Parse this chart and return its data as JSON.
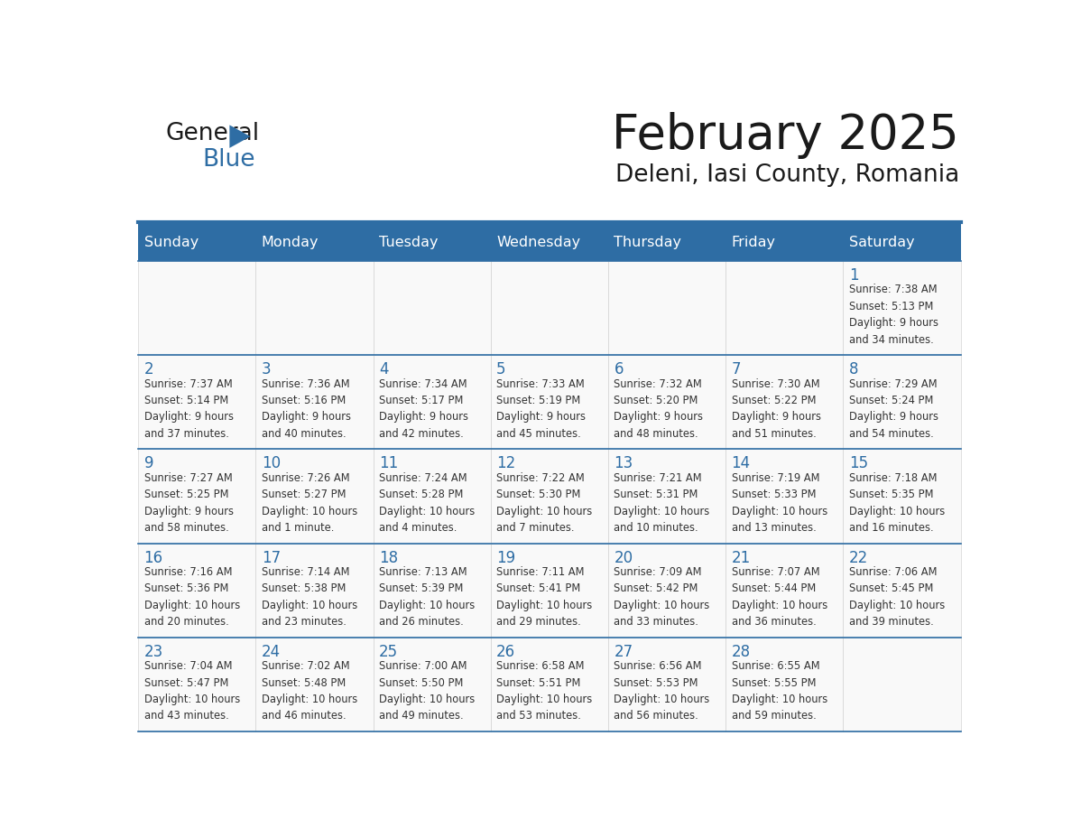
{
  "title": "February 2025",
  "subtitle": "Deleni, Iasi County, Romania",
  "days_of_week": [
    "Sunday",
    "Monday",
    "Tuesday",
    "Wednesday",
    "Thursday",
    "Friday",
    "Saturday"
  ],
  "header_bg": "#2E6DA4",
  "header_text": "#FFFFFF",
  "cell_bg": "#F9F9F9",
  "line_color": "#2E6DA4",
  "text_color": "#333333",
  "day_num_color": "#2E6DA4",
  "calendar_data": [
    [
      {
        "day": null,
        "info": ""
      },
      {
        "day": null,
        "info": ""
      },
      {
        "day": null,
        "info": ""
      },
      {
        "day": null,
        "info": ""
      },
      {
        "day": null,
        "info": ""
      },
      {
        "day": null,
        "info": ""
      },
      {
        "day": 1,
        "info": "Sunrise: 7:38 AM\nSunset: 5:13 PM\nDaylight: 9 hours\nand 34 minutes."
      }
    ],
    [
      {
        "day": 2,
        "info": "Sunrise: 7:37 AM\nSunset: 5:14 PM\nDaylight: 9 hours\nand 37 minutes."
      },
      {
        "day": 3,
        "info": "Sunrise: 7:36 AM\nSunset: 5:16 PM\nDaylight: 9 hours\nand 40 minutes."
      },
      {
        "day": 4,
        "info": "Sunrise: 7:34 AM\nSunset: 5:17 PM\nDaylight: 9 hours\nand 42 minutes."
      },
      {
        "day": 5,
        "info": "Sunrise: 7:33 AM\nSunset: 5:19 PM\nDaylight: 9 hours\nand 45 minutes."
      },
      {
        "day": 6,
        "info": "Sunrise: 7:32 AM\nSunset: 5:20 PM\nDaylight: 9 hours\nand 48 minutes."
      },
      {
        "day": 7,
        "info": "Sunrise: 7:30 AM\nSunset: 5:22 PM\nDaylight: 9 hours\nand 51 minutes."
      },
      {
        "day": 8,
        "info": "Sunrise: 7:29 AM\nSunset: 5:24 PM\nDaylight: 9 hours\nand 54 minutes."
      }
    ],
    [
      {
        "day": 9,
        "info": "Sunrise: 7:27 AM\nSunset: 5:25 PM\nDaylight: 9 hours\nand 58 minutes."
      },
      {
        "day": 10,
        "info": "Sunrise: 7:26 AM\nSunset: 5:27 PM\nDaylight: 10 hours\nand 1 minute."
      },
      {
        "day": 11,
        "info": "Sunrise: 7:24 AM\nSunset: 5:28 PM\nDaylight: 10 hours\nand 4 minutes."
      },
      {
        "day": 12,
        "info": "Sunrise: 7:22 AM\nSunset: 5:30 PM\nDaylight: 10 hours\nand 7 minutes."
      },
      {
        "day": 13,
        "info": "Sunrise: 7:21 AM\nSunset: 5:31 PM\nDaylight: 10 hours\nand 10 minutes."
      },
      {
        "day": 14,
        "info": "Sunrise: 7:19 AM\nSunset: 5:33 PM\nDaylight: 10 hours\nand 13 minutes."
      },
      {
        "day": 15,
        "info": "Sunrise: 7:18 AM\nSunset: 5:35 PM\nDaylight: 10 hours\nand 16 minutes."
      }
    ],
    [
      {
        "day": 16,
        "info": "Sunrise: 7:16 AM\nSunset: 5:36 PM\nDaylight: 10 hours\nand 20 minutes."
      },
      {
        "day": 17,
        "info": "Sunrise: 7:14 AM\nSunset: 5:38 PM\nDaylight: 10 hours\nand 23 minutes."
      },
      {
        "day": 18,
        "info": "Sunrise: 7:13 AM\nSunset: 5:39 PM\nDaylight: 10 hours\nand 26 minutes."
      },
      {
        "day": 19,
        "info": "Sunrise: 7:11 AM\nSunset: 5:41 PM\nDaylight: 10 hours\nand 29 minutes."
      },
      {
        "day": 20,
        "info": "Sunrise: 7:09 AM\nSunset: 5:42 PM\nDaylight: 10 hours\nand 33 minutes."
      },
      {
        "day": 21,
        "info": "Sunrise: 7:07 AM\nSunset: 5:44 PM\nDaylight: 10 hours\nand 36 minutes."
      },
      {
        "day": 22,
        "info": "Sunrise: 7:06 AM\nSunset: 5:45 PM\nDaylight: 10 hours\nand 39 minutes."
      }
    ],
    [
      {
        "day": 23,
        "info": "Sunrise: 7:04 AM\nSunset: 5:47 PM\nDaylight: 10 hours\nand 43 minutes."
      },
      {
        "day": 24,
        "info": "Sunrise: 7:02 AM\nSunset: 5:48 PM\nDaylight: 10 hours\nand 46 minutes."
      },
      {
        "day": 25,
        "info": "Sunrise: 7:00 AM\nSunset: 5:50 PM\nDaylight: 10 hours\nand 49 minutes."
      },
      {
        "day": 26,
        "info": "Sunrise: 6:58 AM\nSunset: 5:51 PM\nDaylight: 10 hours\nand 53 minutes."
      },
      {
        "day": 27,
        "info": "Sunrise: 6:56 AM\nSunset: 5:53 PM\nDaylight: 10 hours\nand 56 minutes."
      },
      {
        "day": 28,
        "info": "Sunrise: 6:55 AM\nSunset: 5:55 PM\nDaylight: 10 hours\nand 59 minutes."
      },
      {
        "day": null,
        "info": ""
      }
    ]
  ]
}
